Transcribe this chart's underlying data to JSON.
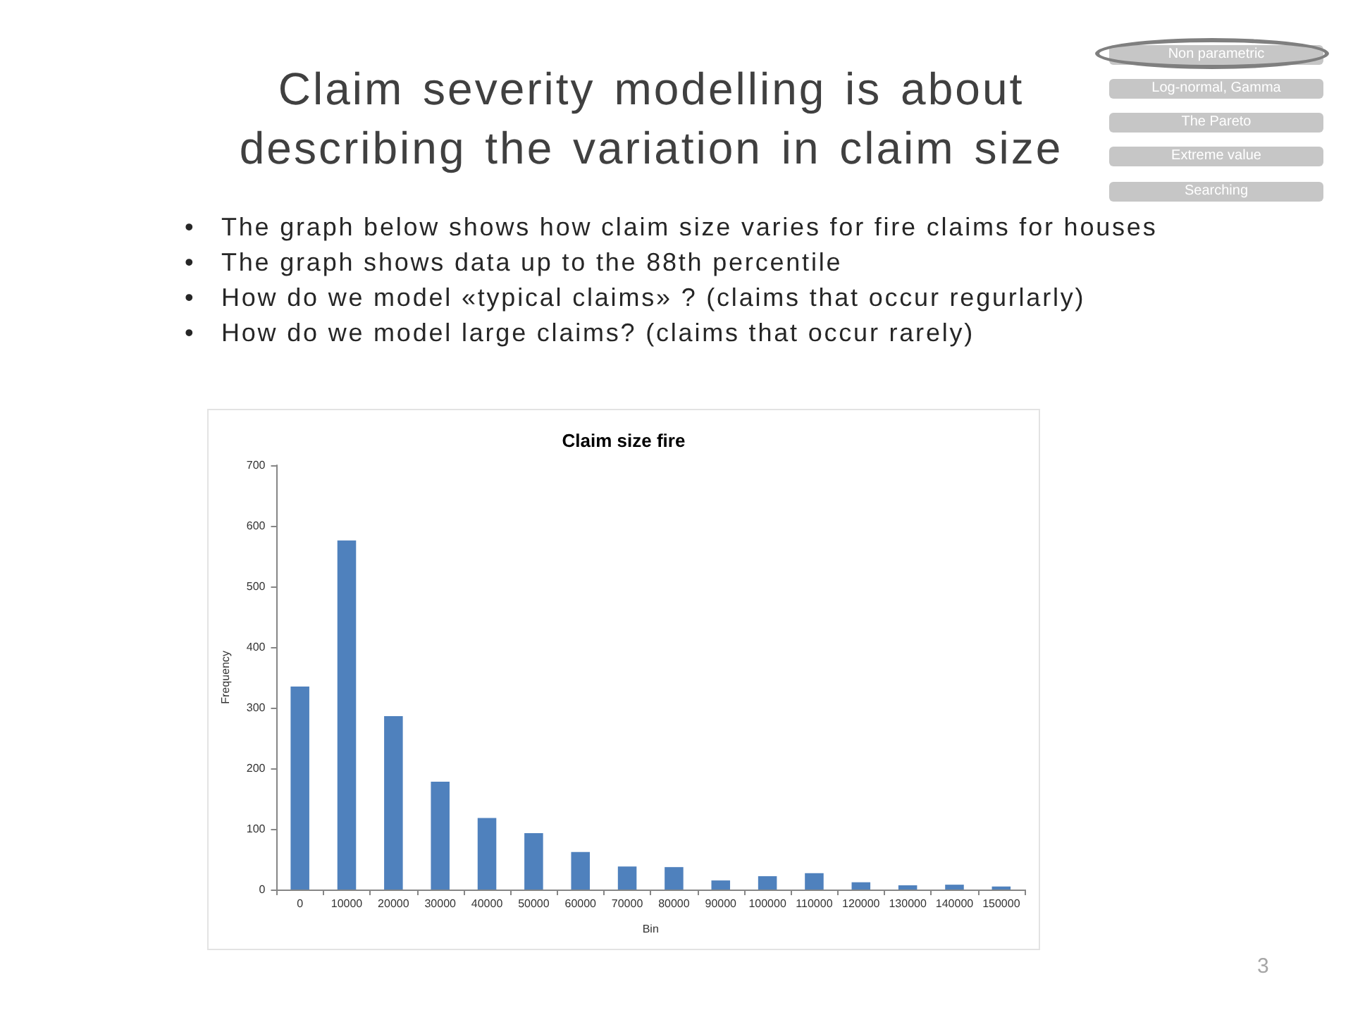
{
  "chart_data": {
    "type": "bar",
    "title": "Claim severity modelling is about describing the variation in claim size",
    "subtitle": "Claim size fire",
    "xlabel": "Bin",
    "ylabel": "Frequency",
    "categories": [
      "0",
      "10000",
      "20000",
      "30000",
      "40000",
      "50000",
      "60000",
      "70000",
      "80000",
      "90000",
      "100000",
      "110000",
      "120000",
      "130000",
      "140000",
      "150000"
    ],
    "values": [
      335,
      576,
      286,
      178,
      118,
      93,
      62,
      38,
      37,
      15,
      22,
      27,
      12,
      7,
      8,
      5
    ],
    "color": "#4f81bd",
    "ylim": [
      0,
      700
    ],
    "yticks": [
      0,
      100,
      200,
      300,
      400,
      500,
      600,
      700
    ],
    "grid": false,
    "annotations": [
      "• The graph below shows how claim size varies for fire claims for houses",
      "• The graph shows data up to the 88th percentile",
      "• How do we model «typical claims» ? (claims that occur regurlarly)",
      "• How do we model large claims? (claims that occur rarely)",
      "Non parametric",
      "Log-normal, Gamma",
      "The Pareto",
      "Extreme value",
      "Searching",
      "3"
    ]
  }
}
